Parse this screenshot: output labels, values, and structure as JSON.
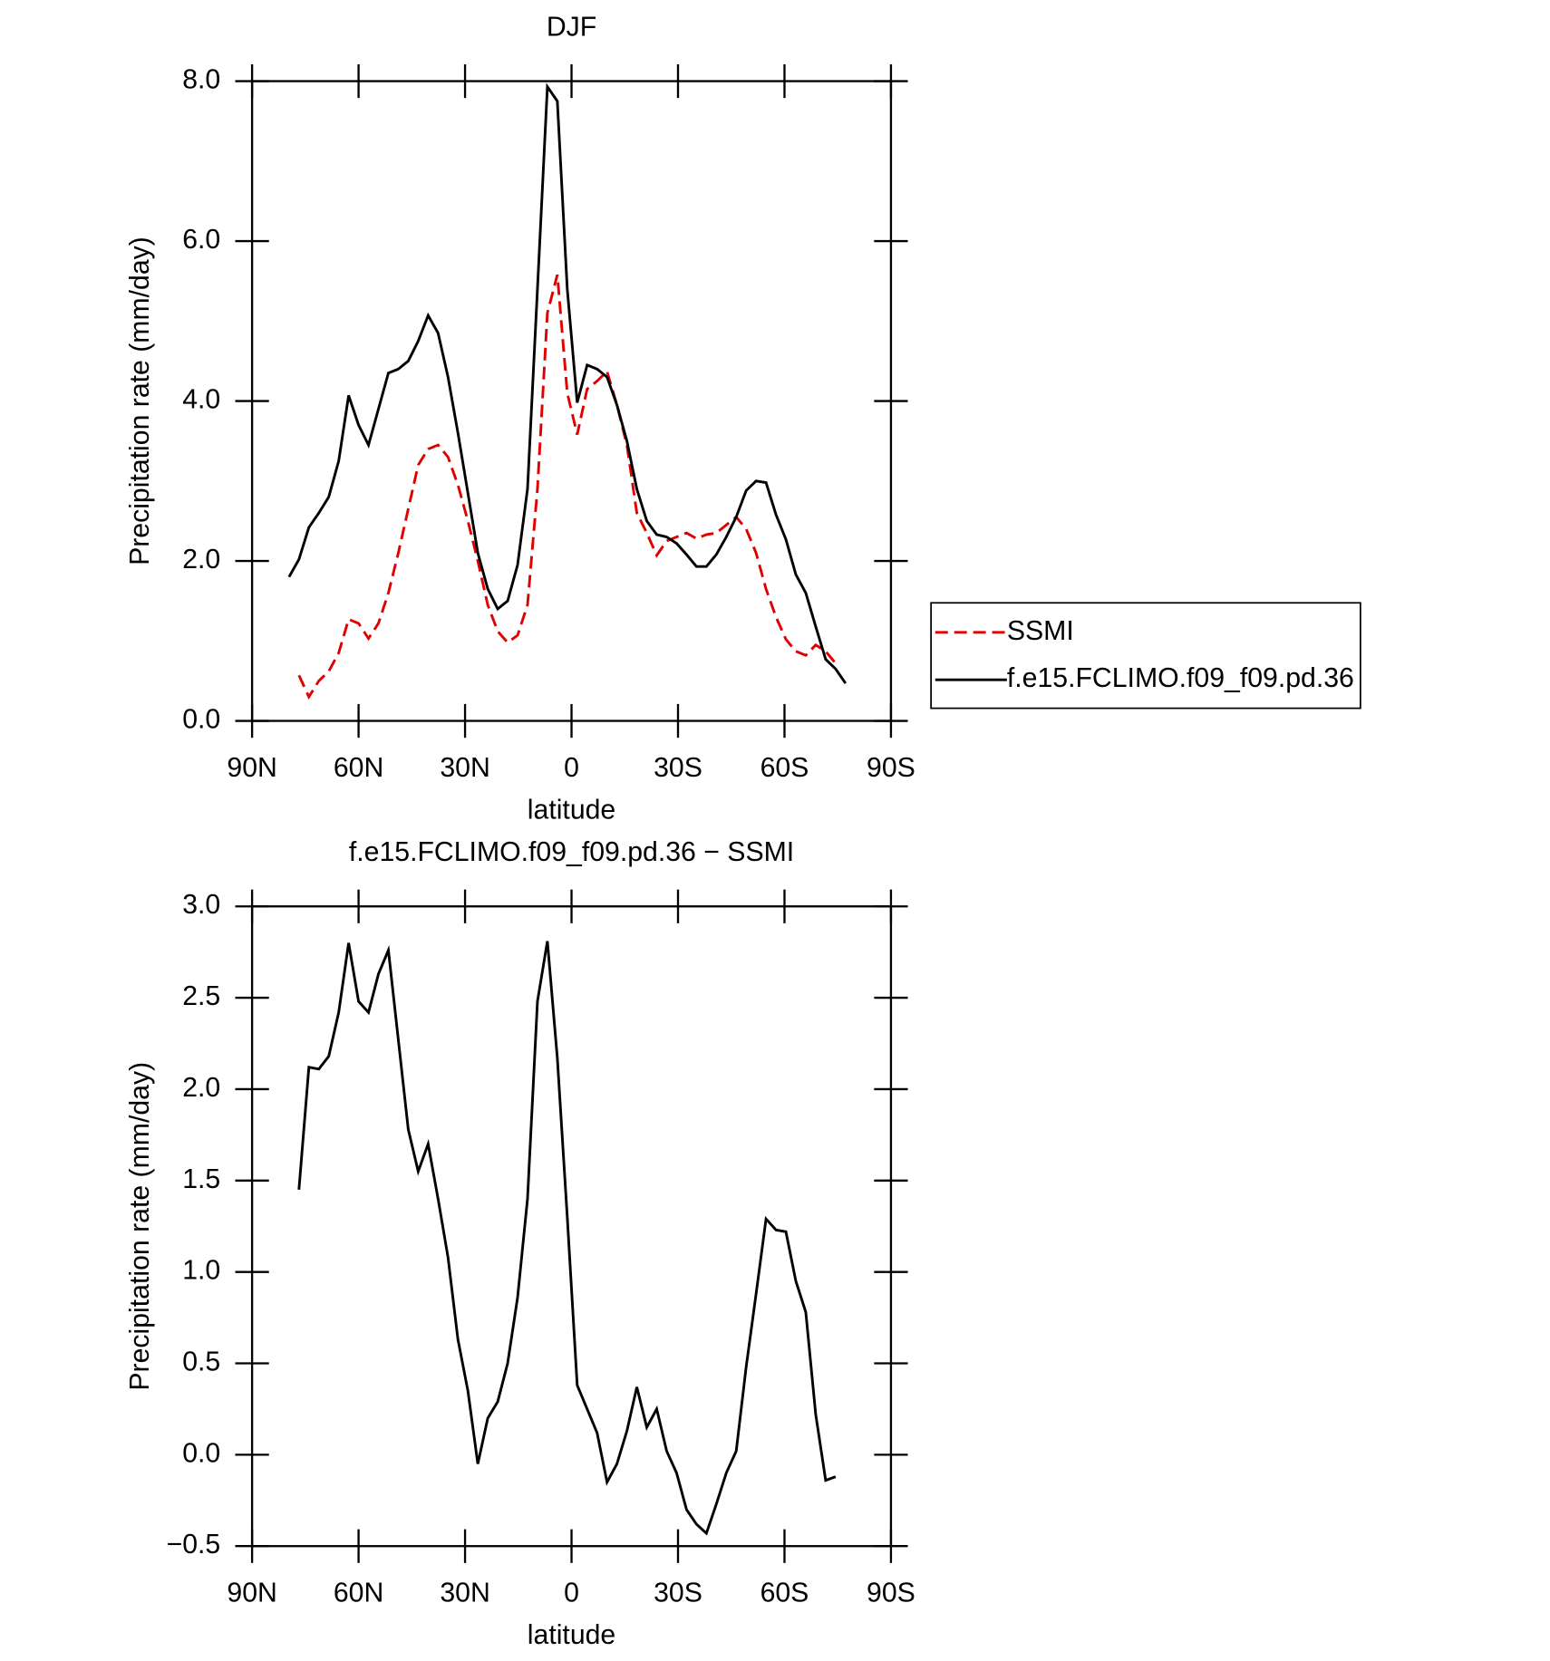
{
  "chart_data": [
    {
      "type": "line",
      "title": "DJF",
      "xlabel": "latitude",
      "ylabel": "Precipitation rate (mm/day)",
      "x": [
        79.6,
        76.8,
        74.0,
        71.2,
        68.4,
        65.6,
        62.8,
        60.0,
        57.2,
        54.4,
        51.6,
        48.8,
        46.0,
        43.2,
        40.4,
        37.6,
        34.8,
        32.0,
        29.2,
        26.4,
        23.6,
        20.8,
        18.0,
        15.2,
        12.4,
        9.6,
        6.8,
        4.0,
        1.2,
        -1.6,
        -4.4,
        -7.2,
        -10.0,
        -12.8,
        -15.6,
        -18.4,
        -21.2,
        -24.0,
        -26.8,
        -29.6,
        -32.4,
        -35.2,
        -38.0,
        -40.8,
        -43.6,
        -46.4,
        -49.2,
        -52.0,
        -54.8,
        -57.6,
        -60.4,
        -63.2,
        -66.0,
        -68.8,
        -71.6,
        -74.4,
        -77.2
      ],
      "series": [
        {
          "name": "SSMI",
          "color": "#e00000",
          "linestyle": "dashed",
          "values": [
            null,
            0.57,
            0.3,
            0.5,
            0.62,
            0.85,
            1.27,
            1.22,
            1.03,
            1.22,
            1.6,
            2.1,
            2.65,
            3.2,
            3.4,
            3.45,
            3.3,
            2.95,
            2.5,
            2.0,
            1.45,
            1.12,
            0.98,
            1.07,
            1.45,
            2.9,
            5.1,
            5.58,
            4.1,
            3.58,
            4.15,
            4.25,
            4.37,
            3.95,
            3.45,
            2.6,
            2.35,
            2.07,
            2.25,
            2.3,
            2.35,
            2.28,
            2.33,
            2.35,
            2.45,
            2.55,
            2.4,
            2.1,
            1.65,
            1.3,
            1.02,
            0.87,
            0.82,
            0.95,
            0.87,
            0.72,
            null
          ]
        },
        {
          "name": "f.e15.FCLIMO.f09_f09.pd.36",
          "color": "#000000",
          "linestyle": "solid",
          "values": [
            1.8,
            2.02,
            2.42,
            2.6,
            2.8,
            3.25,
            4.07,
            3.7,
            3.45,
            3.9,
            4.35,
            4.4,
            4.5,
            4.75,
            5.07,
            4.85,
            4.3,
            3.6,
            2.85,
            2.1,
            1.65,
            1.4,
            1.5,
            1.95,
            2.9,
            5.4,
            7.93,
            7.75,
            5.4,
            3.98,
            4.45,
            4.4,
            4.3,
            3.95,
            3.5,
            2.9,
            2.5,
            2.33,
            2.3,
            2.22,
            2.08,
            1.93,
            1.93,
            2.08,
            2.3,
            2.55,
            2.88,
            3.0,
            2.98,
            2.58,
            2.27,
            1.83,
            1.6,
            1.18,
            0.77,
            0.65,
            0.47
          ]
        }
      ],
      "xlim": [
        90,
        -90
      ],
      "xticks": [
        {
          "value": 90,
          "label": "90N"
        },
        {
          "value": 60,
          "label": "60N"
        },
        {
          "value": 30,
          "label": "30N"
        },
        0,
        {
          "value": -30,
          "label": "30S"
        },
        {
          "value": -60,
          "label": "60S"
        },
        {
          "value": -90,
          "label": "90S"
        }
      ],
      "ylim": [
        0,
        8
      ],
      "yticks": [
        {
          "value": 0,
          "label": "0.0"
        },
        {
          "value": 2,
          "label": "2.0"
        },
        {
          "value": 4,
          "label": "4.0"
        },
        {
          "value": 6,
          "label": "6.0"
        },
        {
          "value": 8,
          "label": "8.0"
        }
      ],
      "legend": "outside-right"
    },
    {
      "type": "line",
      "title": "f.e15.FCLIMO.f09_f09.pd.36 − SSMI",
      "xlabel": "latitude",
      "ylabel": "Precipitation rate (mm/day)",
      "x": [
        79.6,
        76.8,
        74.0,
        71.2,
        68.4,
        65.6,
        62.8,
        60.0,
        57.2,
        54.4,
        51.6,
        48.8,
        46.0,
        43.2,
        40.4,
        37.6,
        34.8,
        32.0,
        29.2,
        26.4,
        23.6,
        20.8,
        18.0,
        15.2,
        12.4,
        9.6,
        6.8,
        4.0,
        1.2,
        -1.6,
        -4.4,
        -7.2,
        -10.0,
        -12.8,
        -15.6,
        -18.4,
        -21.2,
        -24.0,
        -26.8,
        -29.6,
        -32.4,
        -35.2,
        -38.0,
        -40.8,
        -43.6,
        -46.4,
        -49.2,
        -52.0,
        -54.8,
        -57.6,
        -60.4,
        -63.2,
        -66.0,
        -68.8,
        -71.6,
        -74.4,
        -77.2
      ],
      "series": [
        {
          "color": "#000000",
          "linestyle": "solid",
          "values": [
            null,
            1.45,
            2.12,
            2.11,
            2.18,
            2.42,
            2.8,
            2.48,
            2.42,
            2.63,
            2.76,
            2.27,
            1.78,
            1.55,
            1.7,
            1.4,
            1.08,
            0.63,
            0.35,
            -0.05,
            0.2,
            0.29,
            0.5,
            0.86,
            1.4,
            2.48,
            2.81,
            2.17,
            1.3,
            0.38,
            0.25,
            0.12,
            -0.15,
            -0.05,
            0.13,
            0.37,
            0.15,
            0.25,
            0.02,
            -0.1,
            -0.3,
            -0.38,
            -0.43,
            -0.27,
            -0.1,
            0.02,
            0.48,
            0.88,
            1.29,
            1.23,
            1.22,
            0.95,
            0.78,
            0.22,
            -0.14,
            -0.12,
            null
          ]
        }
      ],
      "xlim": [
        90,
        -90
      ],
      "xticks": [
        {
          "value": 90,
          "label": "90N"
        },
        {
          "value": 60,
          "label": "60N"
        },
        {
          "value": 30,
          "label": "30N"
        },
        0,
        {
          "value": -30,
          "label": "30S"
        },
        {
          "value": -60,
          "label": "60S"
        },
        {
          "value": -90,
          "label": "90S"
        }
      ],
      "ylim": [
        -0.5,
        3
      ],
      "yticks": [
        {
          "value": -0.5,
          "label": "−0.5"
        },
        {
          "value": 0,
          "label": "0.0"
        },
        0.5,
        {
          "value": 1,
          "label": "1.0"
        },
        1.5,
        {
          "value": 2,
          "label": "2.0"
        },
        2.5,
        {
          "value": 3,
          "label": "3.0"
        }
      ]
    }
  ]
}
